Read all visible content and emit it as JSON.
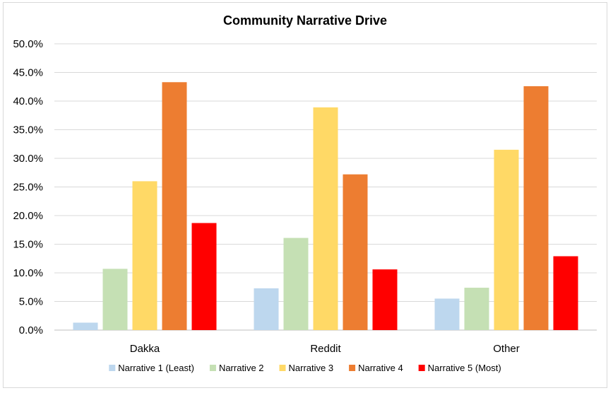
{
  "chart_data": {
    "type": "bar",
    "title": "Community Narrative Drive",
    "xlabel": "",
    "ylabel": "",
    "categories": [
      "Dakka",
      "Reddit",
      "Other"
    ],
    "ylim": [
      0,
      50
    ],
    "yticks": [
      "0.0%",
      "5.0%",
      "10.0%",
      "15.0%",
      "20.0%",
      "25.0%",
      "30.0%",
      "35.0%",
      "40.0%",
      "45.0%",
      "50.0%"
    ],
    "grid": true,
    "legend_position": "bottom",
    "series": [
      {
        "name": "Narrative 1 (Least)",
        "color": "#bdd7ee",
        "values": [
          1.3,
          7.3,
          5.5
        ]
      },
      {
        "name": "Narrative 2",
        "color": "#c5e0b4",
        "values": [
          10.7,
          16.1,
          7.4
        ]
      },
      {
        "name": "Narrative 3",
        "color": "#ffd966",
        "values": [
          26.0,
          38.9,
          31.5
        ]
      },
      {
        "name": "Narrative 4",
        "color": "#ed7d31",
        "values": [
          43.3,
          27.2,
          42.6
        ]
      },
      {
        "name": "Narrative 5 (Most)",
        "color": "#ff0000",
        "values": [
          18.7,
          10.6,
          12.9
        ]
      }
    ]
  }
}
